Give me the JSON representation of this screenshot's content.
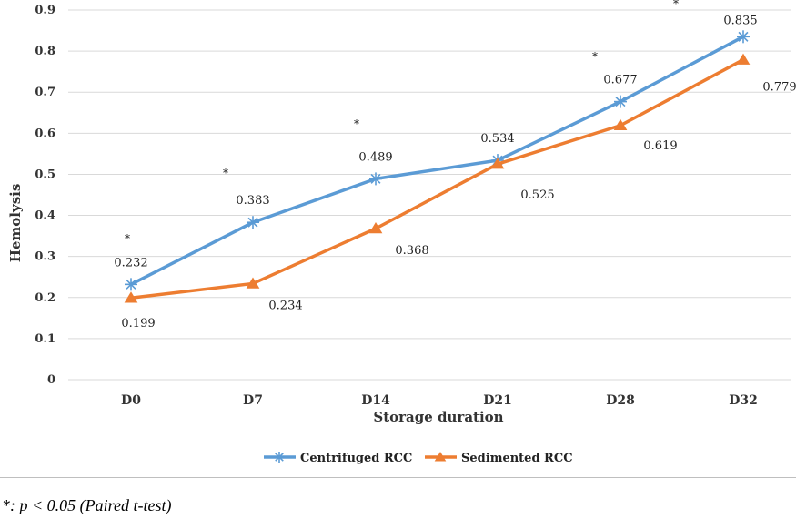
{
  "chart_data": {
    "type": "line",
    "title": "",
    "xlabel": "Storage duration",
    "ylabel": "Hemolysis",
    "categories": [
      "D0",
      "D7",
      "D14",
      "D21",
      "D28",
      "D32"
    ],
    "ylim": [
      0,
      0.9
    ],
    "yticks": [
      "0",
      "0.1",
      "0.2",
      "0.3",
      "0.4",
      "0.5",
      "0.6",
      "0.7",
      "0.8",
      "0.9"
    ],
    "grid": "horizontal",
    "legend_position": "bottom",
    "series": [
      {
        "name": "Centrifuged RCC",
        "color": "#5b9bd5",
        "marker": "asterisk",
        "values": [
          0.232,
          0.383,
          0.489,
          0.534,
          0.677,
          0.835
        ],
        "labels": [
          "0.232",
          "0.383",
          "0.489",
          "0.534",
          "0.677",
          "0.835"
        ]
      },
      {
        "name": "Sedimented RCC",
        "color": "#ed7d31",
        "marker": "triangle",
        "values": [
          0.199,
          0.234,
          0.368,
          0.525,
          0.619,
          0.779
        ],
        "labels": [
          "0.199",
          "0.234",
          "0.368",
          "0.525",
          "0.619",
          "0.779"
        ]
      }
    ],
    "significance_marker": "*",
    "significant_categories": [
      "D0",
      "D7",
      "D14",
      "D28",
      "D32"
    ]
  },
  "footnote": "*: p < 0.05 (Paired t-test)"
}
